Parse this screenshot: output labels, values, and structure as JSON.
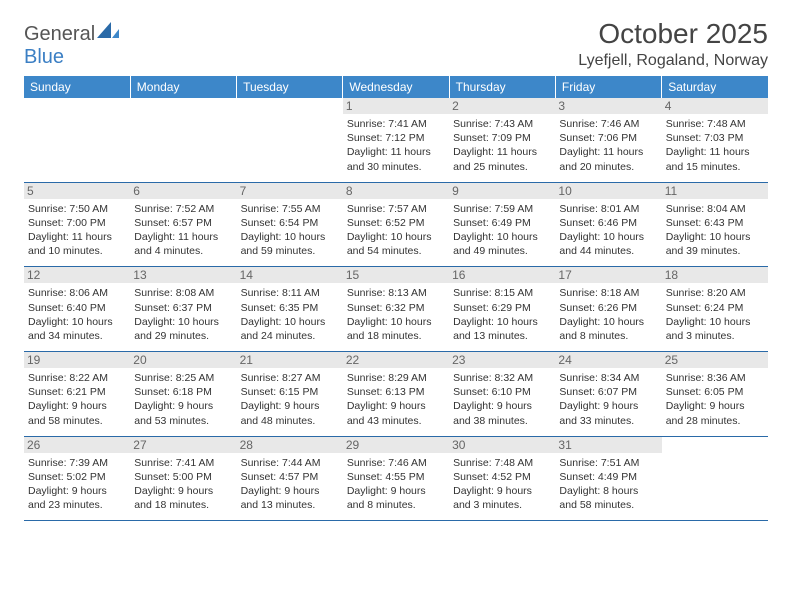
{
  "brand": {
    "part1": "General",
    "part2": "Blue"
  },
  "title": "October 2025",
  "location": "Lyefjell, Rogaland, Norway",
  "colors": {
    "header_bg": "#3d87c9",
    "header_text": "#ffffff",
    "row_border": "#2a6aa8",
    "daynum_bg": "#e8e8e8",
    "text": "#333333"
  },
  "weekdays": [
    "Sunday",
    "Monday",
    "Tuesday",
    "Wednesday",
    "Thursday",
    "Friday",
    "Saturday"
  ],
  "weeks": [
    [
      {
        "day": "",
        "sunrise": "",
        "sunset": "",
        "daylight": ""
      },
      {
        "day": "",
        "sunrise": "",
        "sunset": "",
        "daylight": ""
      },
      {
        "day": "",
        "sunrise": "",
        "sunset": "",
        "daylight": ""
      },
      {
        "day": "1",
        "sunrise": "Sunrise: 7:41 AM",
        "sunset": "Sunset: 7:12 PM",
        "daylight": "Daylight: 11 hours and 30 minutes."
      },
      {
        "day": "2",
        "sunrise": "Sunrise: 7:43 AM",
        "sunset": "Sunset: 7:09 PM",
        "daylight": "Daylight: 11 hours and 25 minutes."
      },
      {
        "day": "3",
        "sunrise": "Sunrise: 7:46 AM",
        "sunset": "Sunset: 7:06 PM",
        "daylight": "Daylight: 11 hours and 20 minutes."
      },
      {
        "day": "4",
        "sunrise": "Sunrise: 7:48 AM",
        "sunset": "Sunset: 7:03 PM",
        "daylight": "Daylight: 11 hours and 15 minutes."
      }
    ],
    [
      {
        "day": "5",
        "sunrise": "Sunrise: 7:50 AM",
        "sunset": "Sunset: 7:00 PM",
        "daylight": "Daylight: 11 hours and 10 minutes."
      },
      {
        "day": "6",
        "sunrise": "Sunrise: 7:52 AM",
        "sunset": "Sunset: 6:57 PM",
        "daylight": "Daylight: 11 hours and 4 minutes."
      },
      {
        "day": "7",
        "sunrise": "Sunrise: 7:55 AM",
        "sunset": "Sunset: 6:54 PM",
        "daylight": "Daylight: 10 hours and 59 minutes."
      },
      {
        "day": "8",
        "sunrise": "Sunrise: 7:57 AM",
        "sunset": "Sunset: 6:52 PM",
        "daylight": "Daylight: 10 hours and 54 minutes."
      },
      {
        "day": "9",
        "sunrise": "Sunrise: 7:59 AM",
        "sunset": "Sunset: 6:49 PM",
        "daylight": "Daylight: 10 hours and 49 minutes."
      },
      {
        "day": "10",
        "sunrise": "Sunrise: 8:01 AM",
        "sunset": "Sunset: 6:46 PM",
        "daylight": "Daylight: 10 hours and 44 minutes."
      },
      {
        "day": "11",
        "sunrise": "Sunrise: 8:04 AM",
        "sunset": "Sunset: 6:43 PM",
        "daylight": "Daylight: 10 hours and 39 minutes."
      }
    ],
    [
      {
        "day": "12",
        "sunrise": "Sunrise: 8:06 AM",
        "sunset": "Sunset: 6:40 PM",
        "daylight": "Daylight: 10 hours and 34 minutes."
      },
      {
        "day": "13",
        "sunrise": "Sunrise: 8:08 AM",
        "sunset": "Sunset: 6:37 PM",
        "daylight": "Daylight: 10 hours and 29 minutes."
      },
      {
        "day": "14",
        "sunrise": "Sunrise: 8:11 AM",
        "sunset": "Sunset: 6:35 PM",
        "daylight": "Daylight: 10 hours and 24 minutes."
      },
      {
        "day": "15",
        "sunrise": "Sunrise: 8:13 AM",
        "sunset": "Sunset: 6:32 PM",
        "daylight": "Daylight: 10 hours and 18 minutes."
      },
      {
        "day": "16",
        "sunrise": "Sunrise: 8:15 AM",
        "sunset": "Sunset: 6:29 PM",
        "daylight": "Daylight: 10 hours and 13 minutes."
      },
      {
        "day": "17",
        "sunrise": "Sunrise: 8:18 AM",
        "sunset": "Sunset: 6:26 PM",
        "daylight": "Daylight: 10 hours and 8 minutes."
      },
      {
        "day": "18",
        "sunrise": "Sunrise: 8:20 AM",
        "sunset": "Sunset: 6:24 PM",
        "daylight": "Daylight: 10 hours and 3 minutes."
      }
    ],
    [
      {
        "day": "19",
        "sunrise": "Sunrise: 8:22 AM",
        "sunset": "Sunset: 6:21 PM",
        "daylight": "Daylight: 9 hours and 58 minutes."
      },
      {
        "day": "20",
        "sunrise": "Sunrise: 8:25 AM",
        "sunset": "Sunset: 6:18 PM",
        "daylight": "Daylight: 9 hours and 53 minutes."
      },
      {
        "day": "21",
        "sunrise": "Sunrise: 8:27 AM",
        "sunset": "Sunset: 6:15 PM",
        "daylight": "Daylight: 9 hours and 48 minutes."
      },
      {
        "day": "22",
        "sunrise": "Sunrise: 8:29 AM",
        "sunset": "Sunset: 6:13 PM",
        "daylight": "Daylight: 9 hours and 43 minutes."
      },
      {
        "day": "23",
        "sunrise": "Sunrise: 8:32 AM",
        "sunset": "Sunset: 6:10 PM",
        "daylight": "Daylight: 9 hours and 38 minutes."
      },
      {
        "day": "24",
        "sunrise": "Sunrise: 8:34 AM",
        "sunset": "Sunset: 6:07 PM",
        "daylight": "Daylight: 9 hours and 33 minutes."
      },
      {
        "day": "25",
        "sunrise": "Sunrise: 8:36 AM",
        "sunset": "Sunset: 6:05 PM",
        "daylight": "Daylight: 9 hours and 28 minutes."
      }
    ],
    [
      {
        "day": "26",
        "sunrise": "Sunrise: 7:39 AM",
        "sunset": "Sunset: 5:02 PM",
        "daylight": "Daylight: 9 hours and 23 minutes."
      },
      {
        "day": "27",
        "sunrise": "Sunrise: 7:41 AM",
        "sunset": "Sunset: 5:00 PM",
        "daylight": "Daylight: 9 hours and 18 minutes."
      },
      {
        "day": "28",
        "sunrise": "Sunrise: 7:44 AM",
        "sunset": "Sunset: 4:57 PM",
        "daylight": "Daylight: 9 hours and 13 minutes."
      },
      {
        "day": "29",
        "sunrise": "Sunrise: 7:46 AM",
        "sunset": "Sunset: 4:55 PM",
        "daylight": "Daylight: 9 hours and 8 minutes."
      },
      {
        "day": "30",
        "sunrise": "Sunrise: 7:48 AM",
        "sunset": "Sunset: 4:52 PM",
        "daylight": "Daylight: 9 hours and 3 minutes."
      },
      {
        "day": "31",
        "sunrise": "Sunrise: 7:51 AM",
        "sunset": "Sunset: 4:49 PM",
        "daylight": "Daylight: 8 hours and 58 minutes."
      },
      {
        "day": "",
        "sunrise": "",
        "sunset": "",
        "daylight": ""
      }
    ]
  ]
}
